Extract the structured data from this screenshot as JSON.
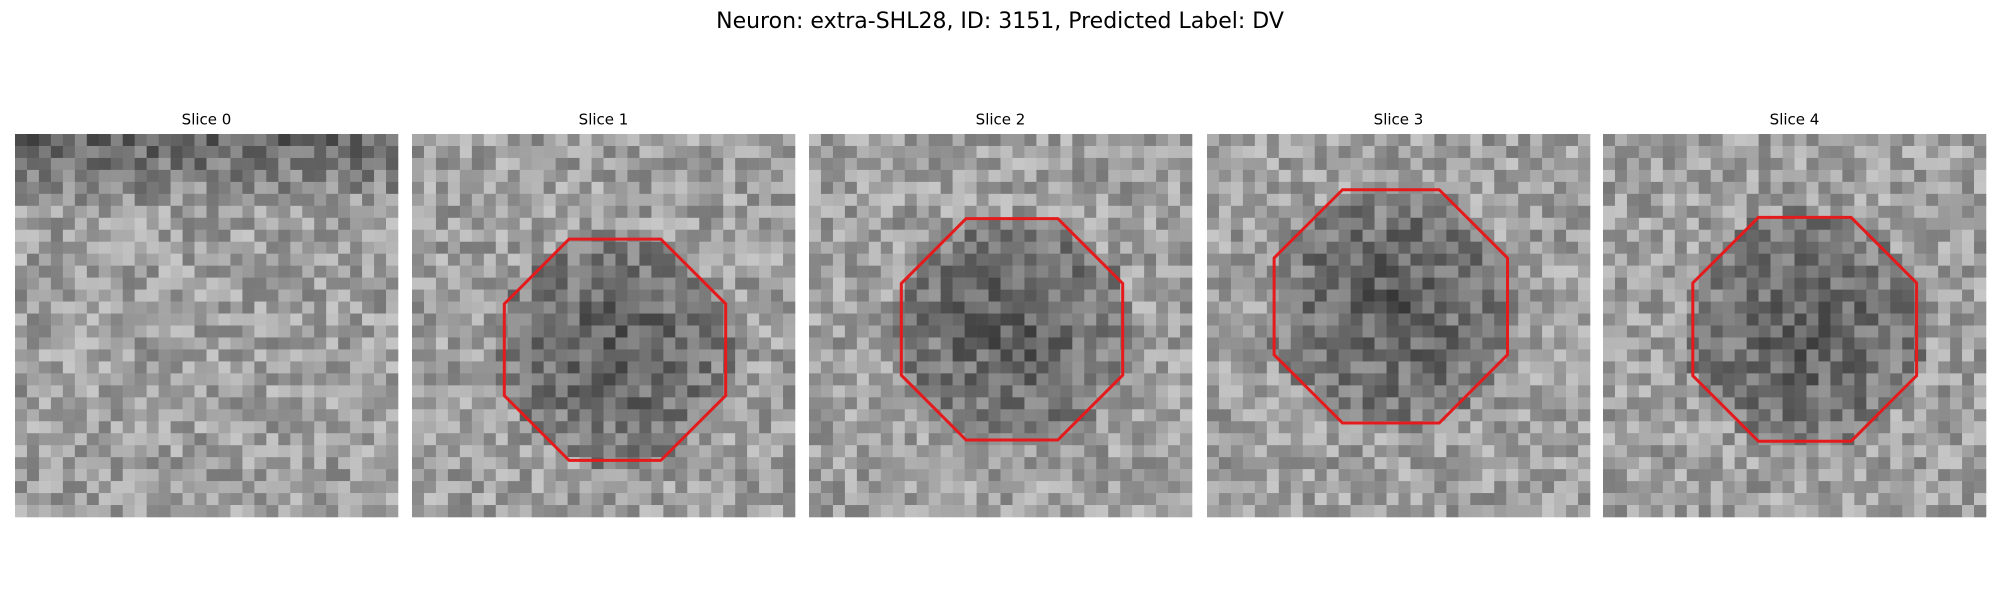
{
  "title": "Neuron: extra-SHL28, ID: 3151, Predicted Label: DV",
  "panels": [
    {
      "title": "Slice 0"
    },
    {
      "title": "Slice 1"
    },
    {
      "title": "Slice 2"
    },
    {
      "title": "Slice 3"
    },
    {
      "title": "Slice 4"
    }
  ]
}
